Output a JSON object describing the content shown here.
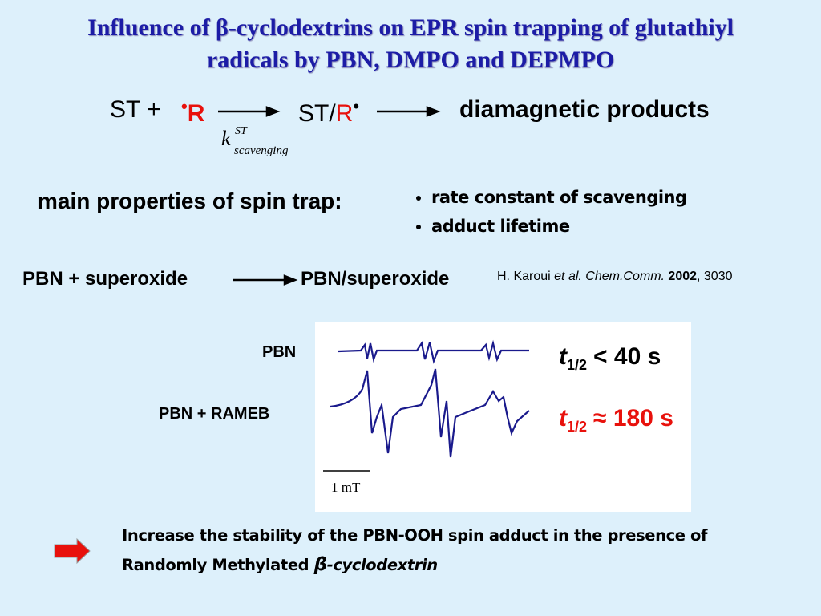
{
  "title": [
    "Influence of β-cyclodextrins on EPR spin trapping of glutathiyl",
    "radicals by PBN, DMPO and DEPMPO"
  ],
  "reaction": {
    "reactant": "ST +",
    "radical_dot": "•",
    "radical": "R",
    "adduct": "ST/",
    "adduct_radical": "R",
    "adduct_dot": "•",
    "product": "diamagnetic products",
    "rate_symbol": "k",
    "rate_superscript": "ST",
    "rate_subscript": "scavenging"
  },
  "properties": {
    "heading": "main properties of spin trap:",
    "items": [
      "rate constant of scavenging",
      "adduct lifetime"
    ]
  },
  "example": {
    "reactant": "PBN + superoxide",
    "product": "PBN/superoxide",
    "reference": {
      "authors": "H. Karoui",
      "etal": "et al. Chem.Comm.",
      "year": "2002",
      "page": ", 3030"
    }
  },
  "spectra": {
    "labels": [
      "PBN",
      "PBN + RAMEB"
    ],
    "scale": "1 mT",
    "halflives": [
      {
        "symbol": "t",
        "subscript": "1/2",
        "value": "< 40 s"
      },
      {
        "symbol": "t",
        "subscript": "1/2",
        "value": "≈ 180 s"
      }
    ]
  },
  "conclusion": {
    "text": "Increase the stability of the PBN-OOH spin adduct in the presence of Randomly Methylated",
    "symbol": "β",
    "suffix": "-cyclodextrin"
  }
}
